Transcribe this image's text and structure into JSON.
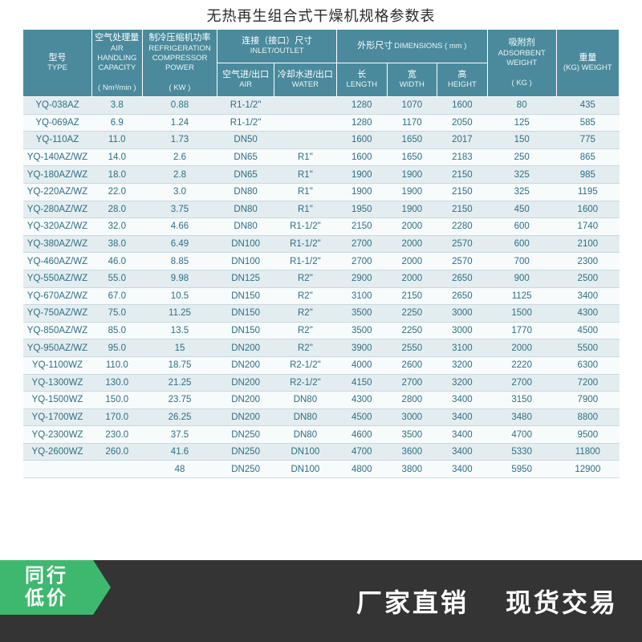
{
  "title": "无热再生组合式干燥机规格参数表",
  "colors": {
    "header_bg": "#4a8a9c",
    "row_odd": "#e3edf0",
    "row_even": "#f7fbfc",
    "cell_text": "#2e6f85",
    "border": "#c9d9df",
    "footer_bg": "#343434",
    "badge_bg": "#3fb86f"
  },
  "header": {
    "model": {
      "cn": "型号",
      "en": "TYPE"
    },
    "air": {
      "cn": "空气处理量",
      "en": "AIR HANDLING CAPACITY",
      "unit": "( Nm³/min )"
    },
    "comp": {
      "cn": "制冷压缩机功率",
      "en": "REFRIGERATION COMPRESSOR POWER",
      "unit": "( KW )"
    },
    "inlet": {
      "cn": "连接（接口）尺寸",
      "en": "INLET/OUTLET"
    },
    "inlet_air": {
      "cn": "空气进/出口",
      "en": "AIR"
    },
    "inlet_water": {
      "cn": "冷却水进/出口",
      "en": "WATER"
    },
    "dims": {
      "cn": "外形尺寸",
      "en": "DIMENSIONS ( mm )"
    },
    "len": {
      "cn": "长",
      "en": "LENGTH"
    },
    "wid": {
      "cn": "宽",
      "en": "WIDTH"
    },
    "hei": {
      "cn": "高",
      "en": "HEIGHT"
    },
    "ads": {
      "cn": "吸附剂",
      "en": "ADSORBENT WEIGHT",
      "unit": "( KG )"
    },
    "wt": {
      "cn": "重量",
      "en": "(KG) WEIGHT"
    }
  },
  "rows": [
    {
      "model": "YQ-038AZ",
      "air": "3.8",
      "comp": "0.88",
      "in_air": "R1-1/2\"",
      "in_water": "",
      "len": "1280",
      "wid": "1070",
      "hei": "1600",
      "ads": "80",
      "wt": "435"
    },
    {
      "model": "YQ-069AZ",
      "air": "6.9",
      "comp": "1.24",
      "in_air": "R1-1/2\"",
      "in_water": "",
      "len": "1280",
      "wid": "1170",
      "hei": "2050",
      "ads": "125",
      "wt": "585"
    },
    {
      "model": "YQ-110AZ",
      "air": "11.0",
      "comp": "1.73",
      "in_air": "DN50",
      "in_water": "",
      "len": "1600",
      "wid": "1650",
      "hei": "2017",
      "ads": "150",
      "wt": "775"
    },
    {
      "model": "YQ-140AZ/WZ",
      "air": "14.0",
      "comp": "2.6",
      "in_air": "DN65",
      "in_water": "R1\"",
      "len": "1600",
      "wid": "1650",
      "hei": "2183",
      "ads": "250",
      "wt": "865"
    },
    {
      "model": "YQ-180AZ/WZ",
      "air": "18.0",
      "comp": "2.8",
      "in_air": "DN65",
      "in_water": "R1\"",
      "len": "1900",
      "wid": "1900",
      "hei": "2150",
      "ads": "325",
      "wt": "985"
    },
    {
      "model": "YQ-220AZ/WZ",
      "air": "22.0",
      "comp": "3.0",
      "in_air": "DN80",
      "in_water": "R1\"",
      "len": "1900",
      "wid": "1900",
      "hei": "2150",
      "ads": "325",
      "wt": "1195"
    },
    {
      "model": "YQ-280AZ/WZ",
      "air": "28.0",
      "comp": "3.75",
      "in_air": "DN80",
      "in_water": "R1\"",
      "len": "1950",
      "wid": "1900",
      "hei": "2150",
      "ads": "450",
      "wt": "1600"
    },
    {
      "model": "YQ-320AZ/WZ",
      "air": "32.0",
      "comp": "4.66",
      "in_air": "DN80",
      "in_water": "R1-1/2\"",
      "len": "2150",
      "wid": "2000",
      "hei": "2280",
      "ads": "600",
      "wt": "1740"
    },
    {
      "model": "YQ-380AZ/WZ",
      "air": "38.0",
      "comp": "6.49",
      "in_air": "DN100",
      "in_water": "R1-1/2\"",
      "len": "2700",
      "wid": "2000",
      "hei": "2570",
      "ads": "600",
      "wt": "2100"
    },
    {
      "model": "YQ-460AZ/WZ",
      "air": "46.0",
      "comp": "8.85",
      "in_air": "DN100",
      "in_water": "R1-1/2\"",
      "len": "2700",
      "wid": "2000",
      "hei": "2570",
      "ads": "700",
      "wt": "2300"
    },
    {
      "model": "YQ-550AZ/WZ",
      "air": "55.0",
      "comp": "9.98",
      "in_air": "DN125",
      "in_water": "R2\"",
      "len": "2900",
      "wid": "2000",
      "hei": "2650",
      "ads": "900",
      "wt": "2500"
    },
    {
      "model": "YQ-670AZ/WZ",
      "air": "67.0",
      "comp": "10.5",
      "in_air": "DN150",
      "in_water": "R2\"",
      "len": "3100",
      "wid": "2150",
      "hei": "2650",
      "ads": "1125",
      "wt": "3400"
    },
    {
      "model": "YQ-750AZ/WZ",
      "air": "75.0",
      "comp": "11.25",
      "in_air": "DN150",
      "in_water": "R2\"",
      "len": "3500",
      "wid": "2250",
      "hei": "3000",
      "ads": "1500",
      "wt": "4300"
    },
    {
      "model": "YQ-850AZ/WZ",
      "air": "85.0",
      "comp": "13.5",
      "in_air": "DN150",
      "in_water": "R2\"",
      "len": "3500",
      "wid": "2250",
      "hei": "3000",
      "ads": "1770",
      "wt": "4500"
    },
    {
      "model": "YQ-950AZ/WZ",
      "air": "95.0",
      "comp": "15",
      "in_air": "DN200",
      "in_water": "R2\"",
      "len": "3900",
      "wid": "2550",
      "hei": "3100",
      "ads": "2000",
      "wt": "5500"
    },
    {
      "model": "YQ-1100WZ",
      "air": "110.0",
      "comp": "18.75",
      "in_air": "DN200",
      "in_water": "R2-1/2\"",
      "len": "4000",
      "wid": "2600",
      "hei": "3200",
      "ads": "2220",
      "wt": "6300"
    },
    {
      "model": "YQ-1300WZ",
      "air": "130.0",
      "comp": "21.25",
      "in_air": "DN200",
      "in_water": "R2-1/2\"",
      "len": "4150",
      "wid": "2700",
      "hei": "3200",
      "ads": "2700",
      "wt": "7200"
    },
    {
      "model": "YQ-1500WZ",
      "air": "150.0",
      "comp": "23.75",
      "in_air": "DN200",
      "in_water": "DN80",
      "len": "4300",
      "wid": "2800",
      "hei": "3400",
      "ads": "3150",
      "wt": "7900"
    },
    {
      "model": "YQ-1700WZ",
      "air": "170.0",
      "comp": "26.25",
      "in_air": "DN200",
      "in_water": "DN80",
      "len": "4500",
      "wid": "3000",
      "hei": "3400",
      "ads": "3480",
      "wt": "8800"
    },
    {
      "model": "YQ-2300WZ",
      "air": "230.0",
      "comp": "37.5",
      "in_air": "DN250",
      "in_water": "DN80",
      "len": "4600",
      "wid": "3500",
      "hei": "3400",
      "ads": "4700",
      "wt": "9500"
    },
    {
      "model": "YQ-2600WZ",
      "air": "260.0",
      "comp": "41.6",
      "in_air": "DN250",
      "in_water": "DN100",
      "len": "4700",
      "wid": "3600",
      "hei": "3400",
      "ads": "5330",
      "wt": "11800"
    },
    {
      "model": "",
      "air": "",
      "comp": "48",
      "in_air": "DN250",
      "in_water": "DN100",
      "len": "4800",
      "wid": "3800",
      "hei": "3400",
      "ads": "5950",
      "wt": "12900"
    }
  ],
  "footer": {
    "badge_l1": "同行",
    "badge_l2": "低价",
    "slogan1": "厂家直销",
    "slogan2": "现货交易"
  }
}
